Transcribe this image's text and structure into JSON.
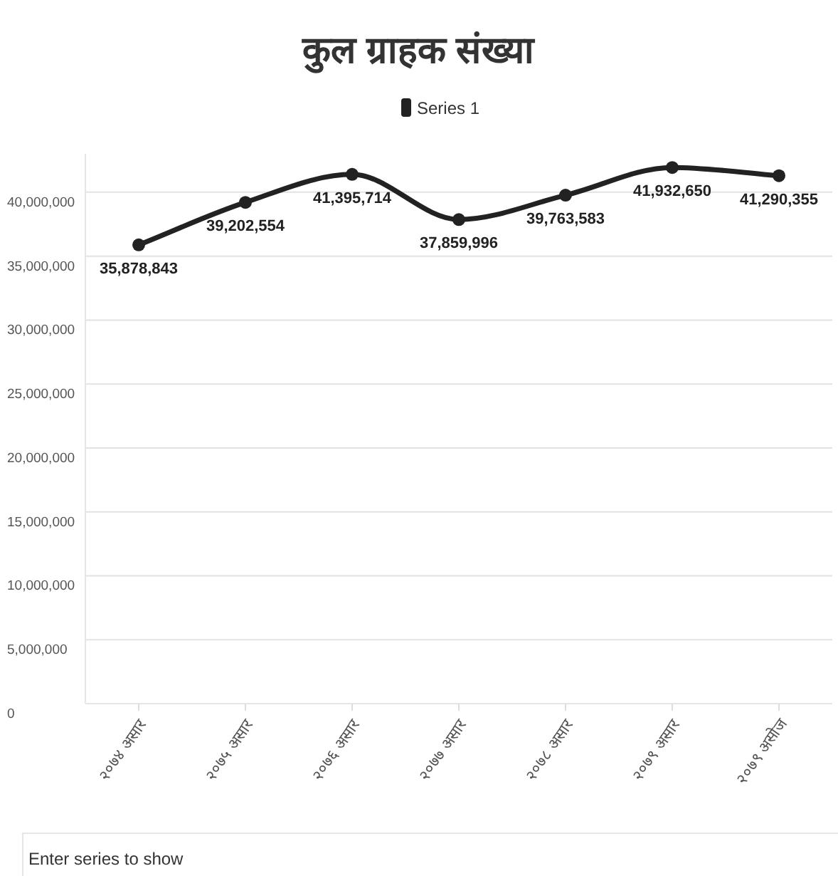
{
  "chart_data": {
    "type": "line",
    "title": "कुल ग्राहक संख्या",
    "categories": [
      "२०७४ असार",
      "२०७५ असार",
      "२०७६ असार",
      "२०७७ असार",
      "२०७८ असार",
      "२०७९ असार",
      "२०७९ असोज"
    ],
    "series": [
      {
        "name": "Series 1",
        "color": "#222222",
        "values": [
          35878843,
          39202554,
          41395714,
          37859996,
          39763583,
          41932650,
          41290355
        ],
        "value_labels": [
          "35,878,843",
          "39,202,554",
          "41,395,714",
          "37,859,996",
          "39,763,583",
          "41,932,650",
          "41,290,355"
        ]
      }
    ],
    "ylim": [
      0,
      43000000
    ],
    "yticks": [
      {
        "value": 0,
        "label": "0"
      },
      {
        "value": 5000000,
        "label": "5,000,000"
      },
      {
        "value": 10000000,
        "label": "10,000,000"
      },
      {
        "value": 15000000,
        "label": "15,000,000"
      },
      {
        "value": 20000000,
        "label": "20,000,000"
      },
      {
        "value": 25000000,
        "label": "25,000,000"
      },
      {
        "value": 30000000,
        "label": "30,000,000"
      },
      {
        "value": 35000000,
        "label": "35,000,000"
      },
      {
        "value": 40000000,
        "label": "40,000,000"
      }
    ],
    "grid": "y",
    "legend": "top",
    "marker": "circle",
    "line_style": "solid",
    "annotations": [
      "Enter series to show"
    ]
  }
}
